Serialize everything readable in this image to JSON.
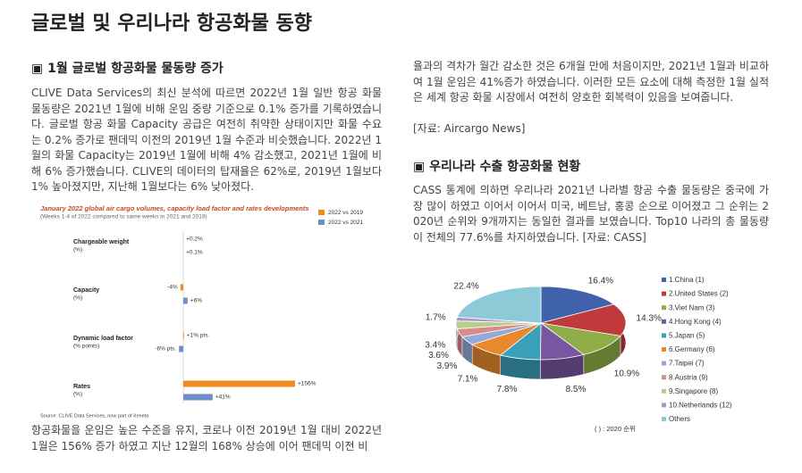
{
  "title": "글로벌 및 우리나라 항공화물 동향",
  "left": {
    "heading": "▣ 1월 글로벌 항공화물 물동량 증가",
    "paragraph_1": "CLIVE Data Services의 최신 분석에 따르면 2022년 1월 일반 항공 화물 물동량은 2021년 1월에 비해 운임 중량 기준으로 0.1% 증가를 기록하였습니다. 글로벌 항공 화물 Capacity 공급은 여전히 취약한 상태이지만 화물 수요는 0.2% 증가로 팬데믹 이전의 2019년 1월 수준과 비슷했습니다. 2022년 1월의 화물 Capacity는 2019년 1월에 비해 4% 감소했고, 2021년 1월에 비해 6% 증가했습니다. CLIVE의 데이터의 탑재율은 62%로, 2019년 1월보다 1% 높아졌지만, 지난해 1월보다는 6% 낮아졌다.",
    "paragraph_2": "항공화물을 운임은 높은 수준을 유지, 코로나 이전 2019년 1월 대비 2022년 1월은 156% 증가 하였고 지난 12월의 168% 상승에 이어 팬데믹 이전 비"
  },
  "right": {
    "paragraph_2_continued": "율과의 격차가 월간 감소한 것은 6개월 만에 처음이지만, 2021년 1월과 비교하여 1월 운임은 41%증가 하였습니다. 이러한 모든 요소에 대해 측정한 1월 실적은 세계 항공 화물 시장에서 여전히 양호한 회복력이 있음을 보여줍니다.",
    "source": "[자료: Aircargo News]",
    "heading": "▣ 우리나라 수출 항공화물 현황",
    "paragraph_3": "CASS 통계에 의하면 우리나라 2021년 나라별 항공 수출 물동량은 중국에 가장 많이 하였고 이어서 이어서 미국, 베트남, 홍콩 순으로 이어졌고 그 순위는 2020년 순위와 9개까지는 동일한 결과를 보였습니다. Top10 나라의 총 물동량이 전체의 77.6%를 차지하였습니다. [자료: CASS]"
  },
  "chart_data": [
    {
      "type": "hbar",
      "title": "January 2022 global air cargo volumes, capacity load factor and rates developments",
      "subtitle": "(Weeks 1-4 of 2022 compared to same weeks in 2021 and 2019)",
      "categories": [
        "Chargeable weight",
        "Capacity",
        "Dynamic load factor",
        "Rates"
      ],
      "category_units": [
        "(%)",
        "(%)",
        "(% points)",
        "(%)"
      ],
      "series": [
        {
          "name": "2022 vs 2019",
          "color": "#f28a1e",
          "values": [
            0.2,
            -4,
            1,
            156
          ],
          "value_labels": [
            "+0.2%",
            "-4%",
            "+1% pts.",
            "+156%"
          ]
        },
        {
          "name": "2022 vs 2021",
          "color": "#6d8ec6",
          "values": [
            0.1,
            6,
            -6,
            41
          ],
          "value_labels": [
            "+0.1%",
            "+6%",
            "-6% pts.",
            "+41%"
          ]
        }
      ],
      "source": "Source: CLIVE Data Services, now part of Xeneta"
    },
    {
      "type": "pie",
      "categories": [
        "1.China (1)",
        "2.United States (2)",
        "3.Viet Nam (3)",
        "4.Hong Kong (4)",
        "5.Japan (5)",
        "6.Germany (6)",
        "7.Taipei (7)",
        "8.Austria (9)",
        "9.Singapore (8)",
        "10.Netherlands (12)",
        "Others"
      ],
      "values": [
        16.4,
        14.3,
        10.9,
        8.5,
        7.8,
        7.1,
        3.9,
        3.6,
        3.4,
        1.7,
        22.4
      ],
      "value_labels": [
        "16.4%",
        "14.3%",
        "10.9%",
        "8.5%",
        "7.8%",
        "7.1%",
        "3.9%",
        "3.6%",
        "3.4%",
        "1.7%",
        "22.4%"
      ],
      "colors": [
        "#3f62ab",
        "#c0393b",
        "#8fae48",
        "#7757a0",
        "#3a9fb8",
        "#e8892e",
        "#95a8d8",
        "#d88c8a",
        "#b8ce88",
        "#a698c6",
        "#8dcad8"
      ],
      "note": "( ) : 2020 순위"
    }
  ]
}
